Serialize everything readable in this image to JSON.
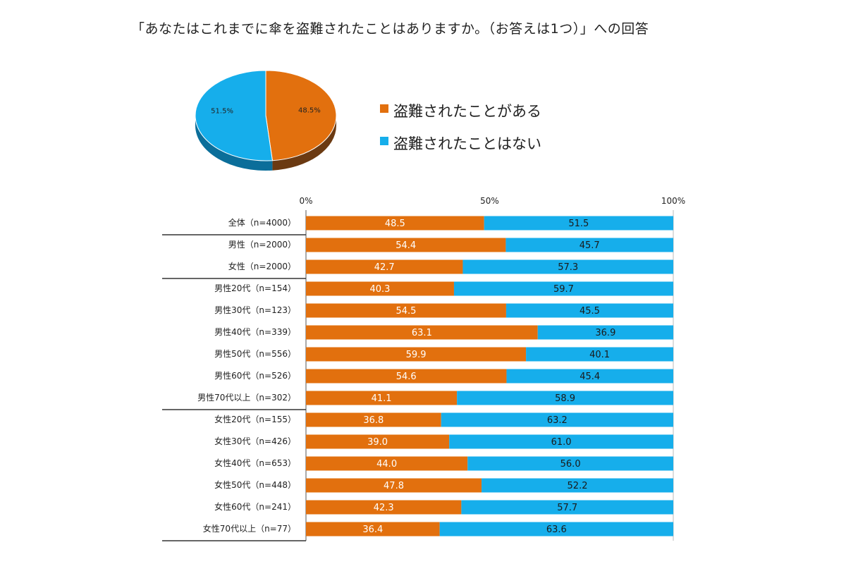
{
  "title": "「あなたはこれまでに傘を盗難されたことはありますか。（お答えは1つ）」への回答",
  "colors": {
    "stolen": "#E2700E",
    "not_stolen": "#16AEEB",
    "pie_side_stolen": "#6B3A12",
    "pie_side_not": "#0B6E9A"
  },
  "chart_data": [
    {
      "type": "pie",
      "slices": [
        {
          "name": "盗難されたことがある",
          "value": 48.5,
          "label": "48.5%"
        },
        {
          "name": "盗難されたことはない",
          "value": 51.5,
          "label": "51.5%"
        }
      ],
      "legend": [
        "盗難されたことがある",
        "盗難されたことはない"
      ],
      "legend_position": "right"
    },
    {
      "type": "bar",
      "orientation": "horizontal",
      "stacked": true,
      "xlim": [
        0,
        100
      ],
      "x_ticks": [
        "0%",
        "50%",
        "100%"
      ],
      "categories": [
        "全体（n=4000）",
        "男性（n=2000）",
        "女性（n=2000）",
        "男性20代（n=154）",
        "男性30代（n=123）",
        "男性40代（n=339）",
        "男性50代（n=556）",
        "男性60代（n=526）",
        "男性70代以上（n=302）",
        "女性20代（n=155）",
        "女性30代（n=426）",
        "女性40代（n=653）",
        "女性50代（n=448）",
        "女性60代（n=241）",
        "女性70代以上（n=77）"
      ],
      "series": [
        {
          "name": "盗難されたことがある",
          "values": [
            48.5,
            54.4,
            42.7,
            40.3,
            54.5,
            63.1,
            59.9,
            54.6,
            41.1,
            36.8,
            39.0,
            44.0,
            47.8,
            42.3,
            36.4
          ]
        },
        {
          "name": "盗難されたことはない",
          "values": [
            51.5,
            45.7,
            57.3,
            59.7,
            45.5,
            36.9,
            40.1,
            45.4,
            58.9,
            63.2,
            61.0,
            56.0,
            52.2,
            57.7,
            63.6
          ]
        }
      ],
      "group_separators_after": [
        0,
        2,
        8
      ]
    }
  ]
}
